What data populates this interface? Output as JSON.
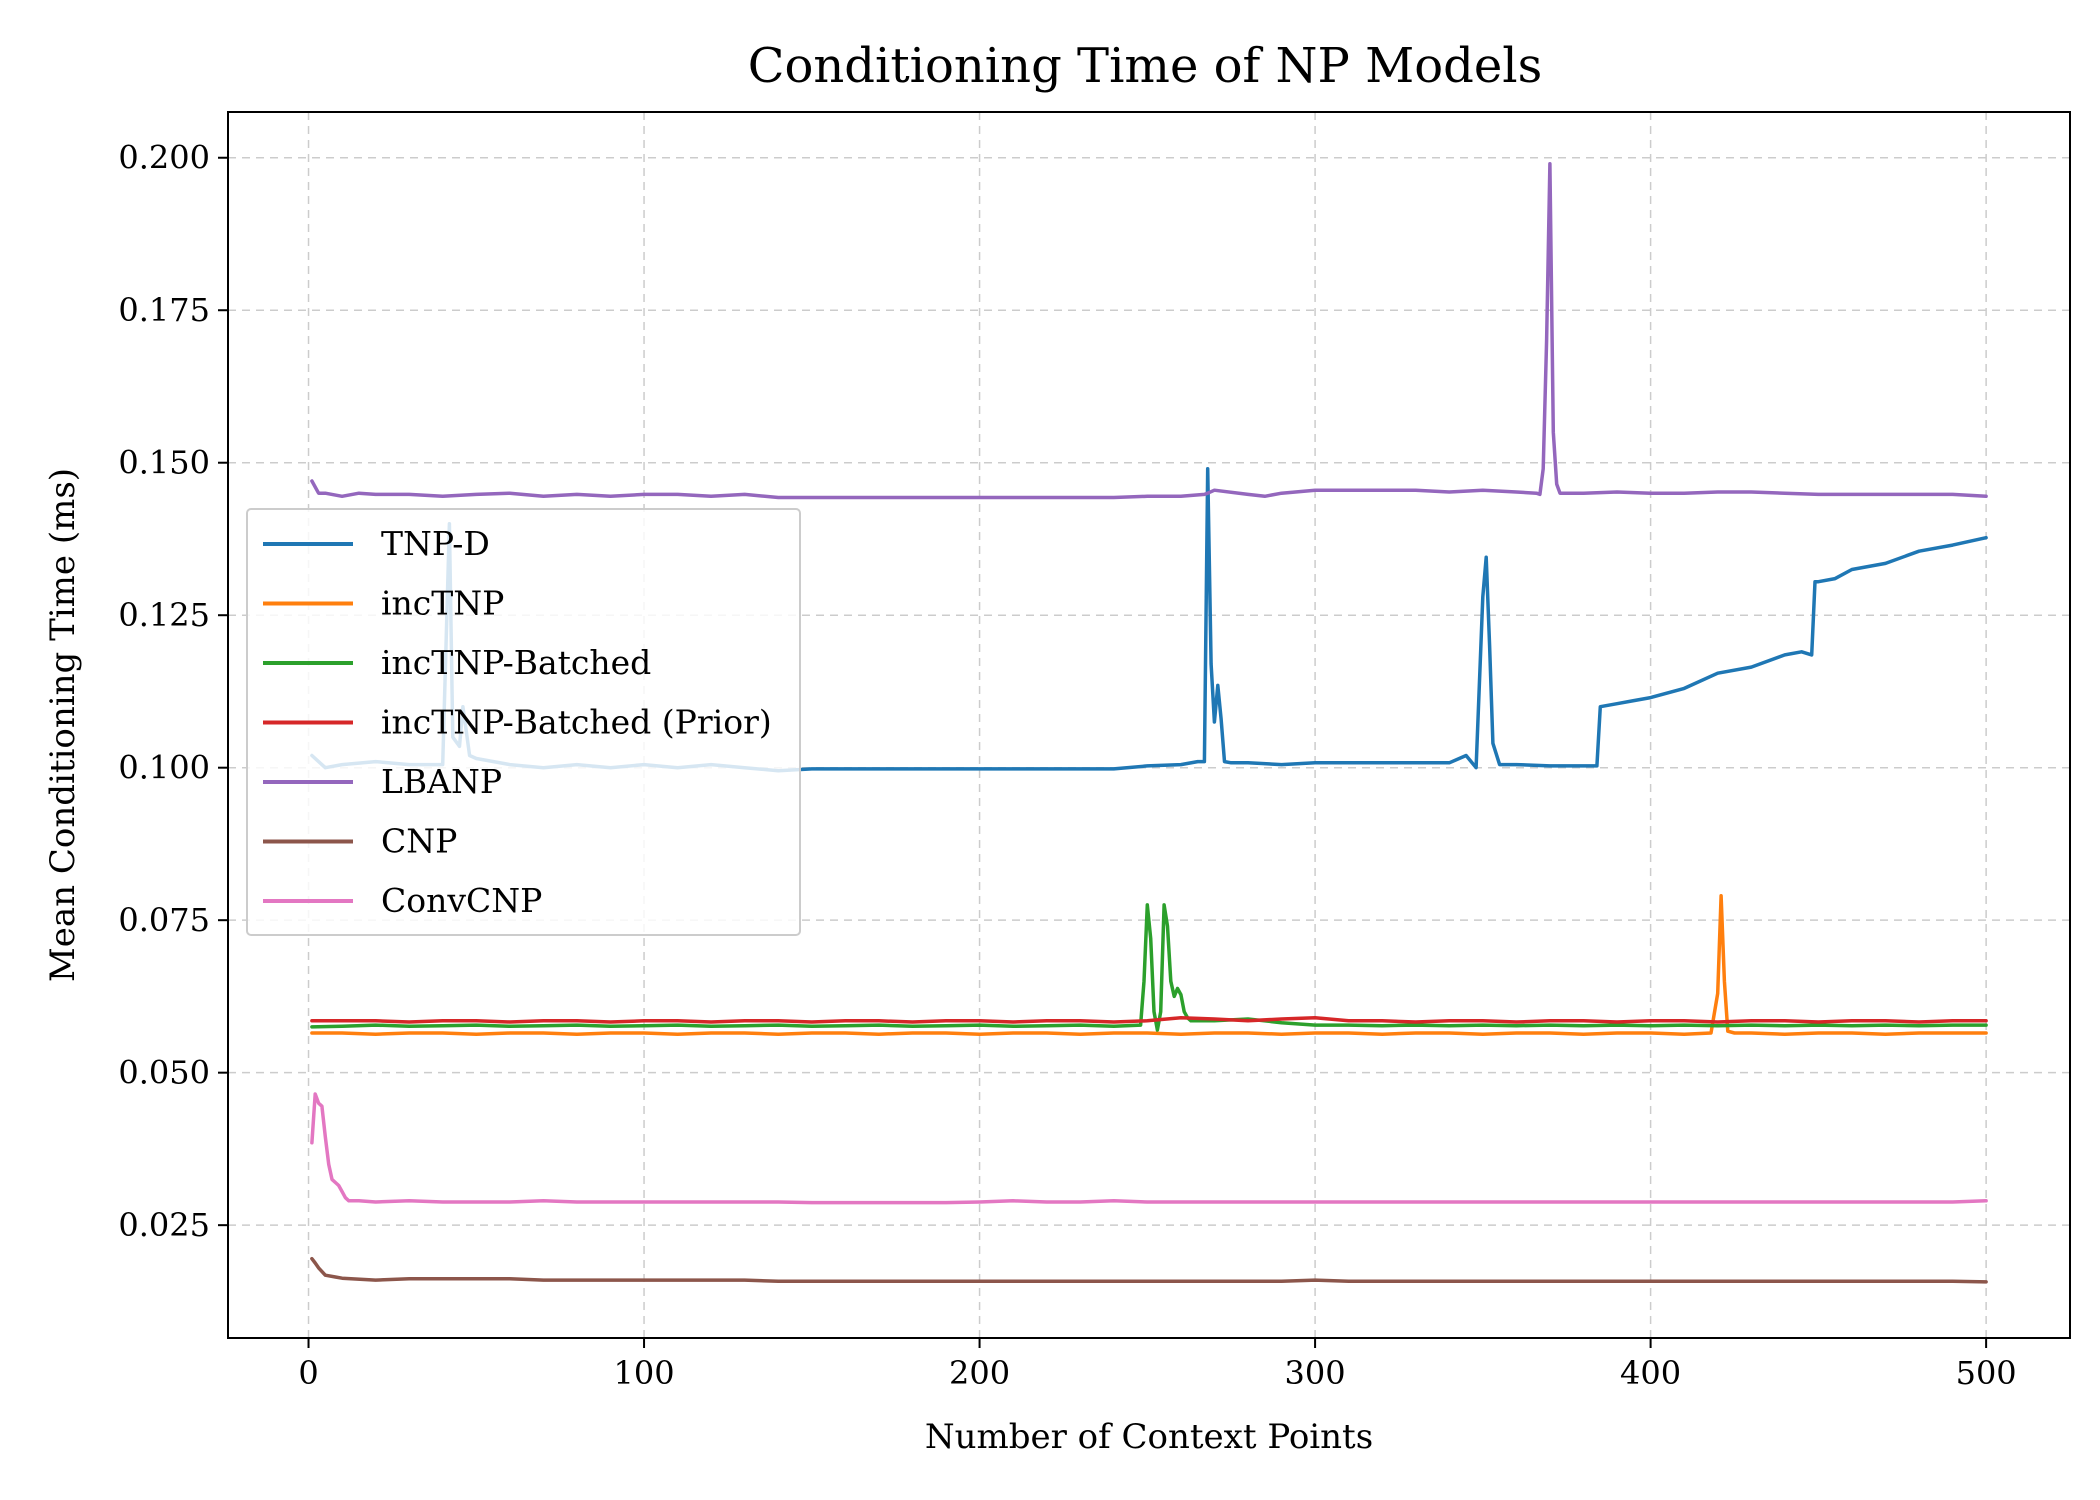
{
  "chart_data": {
    "type": "line",
    "title": "Conditioning Time of NP Models",
    "xlabel": "Number of Context Points",
    "ylabel": "Mean Conditioning Time (ms)",
    "xlim": [
      -24,
      525
    ],
    "ylim": [
      0.0065,
      0.2075
    ],
    "xticks": [
      0,
      100,
      200,
      300,
      400,
      500
    ],
    "xtick_labels": [
      "0",
      "100",
      "200",
      "300",
      "400",
      "500"
    ],
    "yticks": [
      0.025,
      0.05,
      0.075,
      0.1,
      0.125,
      0.15,
      0.175,
      0.2
    ],
    "ytick_labels": [
      "0.025",
      "0.050",
      "0.075",
      "0.100",
      "0.125",
      "0.150",
      "0.175",
      "0.200"
    ],
    "grid": true,
    "legend_position": "center-left",
    "series": [
      {
        "name": "TNP-D",
        "color": "#1f77b4",
        "x": [
          1,
          5,
          10,
          20,
          30,
          40,
          42,
          43,
          45,
          46,
          48,
          50,
          60,
          70,
          80,
          90,
          100,
          110,
          120,
          130,
          140,
          150,
          160,
          170,
          180,
          190,
          200,
          210,
          220,
          230,
          240,
          250,
          260,
          265,
          267,
          268,
          269,
          270,
          271,
          272,
          273,
          275,
          280,
          290,
          300,
          310,
          320,
          330,
          340,
          345,
          348,
          350,
          351,
          352,
          353,
          355,
          360,
          370,
          380,
          384,
          385,
          390,
          395,
          400,
          410,
          420,
          430,
          440,
          445,
          448,
          449,
          450,
          455,
          460,
          470,
          480,
          490,
          500
        ],
        "y": [
          0.102,
          0.1,
          0.1005,
          0.101,
          0.1005,
          0.1005,
          0.14,
          0.105,
          0.1035,
          0.11,
          0.102,
          0.1015,
          0.1005,
          0.1,
          0.1005,
          0.1,
          0.1005,
          0.1,
          0.1005,
          0.1,
          0.0995,
          0.0998,
          0.0998,
          0.0998,
          0.0998,
          0.0998,
          0.0998,
          0.0998,
          0.0998,
          0.0998,
          0.0998,
          0.1003,
          0.1005,
          0.101,
          0.101,
          0.149,
          0.117,
          0.1075,
          0.1135,
          0.108,
          0.101,
          0.1008,
          0.1008,
          0.1005,
          0.1008,
          0.1008,
          0.1008,
          0.1008,
          0.1008,
          0.102,
          0.1,
          0.128,
          0.1345,
          0.12,
          0.104,
          0.1005,
          0.1005,
          0.1003,
          0.1003,
          0.1003,
          0.11,
          0.1105,
          0.111,
          0.1115,
          0.113,
          0.1155,
          0.1165,
          0.1185,
          0.119,
          0.1185,
          0.1305,
          0.1305,
          0.131,
          0.1325,
          0.1335,
          0.1355,
          0.1365,
          0.1377
        ]
      },
      {
        "name": "incTNP",
        "color": "#ff7f0e",
        "x": [
          1,
          10,
          20,
          30,
          40,
          50,
          60,
          70,
          80,
          90,
          100,
          110,
          120,
          130,
          140,
          150,
          160,
          170,
          180,
          190,
          200,
          210,
          220,
          230,
          240,
          250,
          260,
          270,
          280,
          290,
          300,
          310,
          320,
          330,
          340,
          350,
          360,
          370,
          380,
          390,
          400,
          410,
          418,
          420,
          421,
          422,
          423,
          425,
          430,
          440,
          450,
          460,
          470,
          480,
          490,
          500
        ],
        "y": [
          0.0565,
          0.0565,
          0.0563,
          0.0565,
          0.0565,
          0.0563,
          0.0565,
          0.0565,
          0.0563,
          0.0565,
          0.0565,
          0.0563,
          0.0565,
          0.0565,
          0.0563,
          0.0565,
          0.0565,
          0.0563,
          0.0565,
          0.0565,
          0.0563,
          0.0565,
          0.0565,
          0.0563,
          0.0565,
          0.0565,
          0.0563,
          0.0565,
          0.0565,
          0.0563,
          0.0565,
          0.0565,
          0.0563,
          0.0565,
          0.0565,
          0.0563,
          0.0565,
          0.0565,
          0.0563,
          0.0565,
          0.0565,
          0.0563,
          0.0565,
          0.063,
          0.079,
          0.065,
          0.0568,
          0.0565,
          0.0565,
          0.0563,
          0.0565,
          0.0565,
          0.0563,
          0.0565,
          0.0565,
          0.0565
        ]
      },
      {
        "name": "incTNP-Batched",
        "color": "#2ca02c",
        "x": [
          1,
          10,
          20,
          30,
          40,
          50,
          60,
          70,
          80,
          90,
          100,
          110,
          120,
          130,
          140,
          150,
          160,
          170,
          180,
          190,
          200,
          210,
          220,
          230,
          240,
          248,
          249,
          250,
          251,
          252,
          253,
          254,
          255,
          256,
          257,
          258,
          259,
          260,
          261,
          262,
          263,
          265,
          270,
          280,
          290,
          300,
          310,
          320,
          330,
          340,
          350,
          360,
          370,
          380,
          390,
          400,
          410,
          420,
          430,
          440,
          450,
          460,
          470,
          480,
          490,
          500
        ],
        "y": [
          0.0575,
          0.0576,
          0.0578,
          0.0576,
          0.0577,
          0.0578,
          0.0576,
          0.0577,
          0.0578,
          0.0576,
          0.0577,
          0.0578,
          0.0576,
          0.0577,
          0.0578,
          0.0576,
          0.0577,
          0.0578,
          0.0576,
          0.0577,
          0.0578,
          0.0576,
          0.0577,
          0.0578,
          0.0576,
          0.0578,
          0.065,
          0.0775,
          0.072,
          0.06,
          0.057,
          0.06,
          0.0775,
          0.074,
          0.065,
          0.0625,
          0.0638,
          0.0628,
          0.06,
          0.059,
          0.0585,
          0.0585,
          0.0585,
          0.0588,
          0.0582,
          0.0578,
          0.0578,
          0.0577,
          0.0578,
          0.0577,
          0.0578,
          0.0577,
          0.0578,
          0.0577,
          0.0578,
          0.0577,
          0.0578,
          0.0577,
          0.0578,
          0.0577,
          0.0578,
          0.0577,
          0.0578,
          0.0577,
          0.0578,
          0.0578
        ]
      },
      {
        "name": "incTNP-Batched (Prior)",
        "color": "#d62728",
        "x": [
          1,
          10,
          20,
          30,
          40,
          50,
          60,
          70,
          80,
          90,
          100,
          110,
          120,
          130,
          140,
          150,
          160,
          170,
          180,
          190,
          200,
          210,
          220,
          230,
          240,
          250,
          260,
          270,
          280,
          290,
          300,
          310,
          320,
          330,
          340,
          350,
          360,
          370,
          380,
          390,
          400,
          410,
          420,
          430,
          440,
          450,
          460,
          470,
          480,
          490,
          500
        ],
        "y": [
          0.0585,
          0.0585,
          0.0585,
          0.0583,
          0.0585,
          0.0585,
          0.0583,
          0.0585,
          0.0585,
          0.0583,
          0.0585,
          0.0585,
          0.0583,
          0.0585,
          0.0585,
          0.0583,
          0.0585,
          0.0585,
          0.0583,
          0.0585,
          0.0585,
          0.0583,
          0.0585,
          0.0585,
          0.0583,
          0.0585,
          0.059,
          0.0588,
          0.0585,
          0.0588,
          0.059,
          0.0585,
          0.0585,
          0.0583,
          0.0585,
          0.0585,
          0.0583,
          0.0585,
          0.0585,
          0.0583,
          0.0585,
          0.0585,
          0.0583,
          0.0585,
          0.0585,
          0.0583,
          0.0585,
          0.0585,
          0.0583,
          0.0585,
          0.0585
        ]
      },
      {
        "name": "LBANP",
        "color": "#9467bd",
        "x": [
          1,
          3,
          5,
          10,
          15,
          20,
          30,
          40,
          50,
          60,
          70,
          80,
          90,
          100,
          110,
          120,
          130,
          140,
          150,
          160,
          170,
          180,
          190,
          200,
          210,
          220,
          230,
          240,
          250,
          260,
          267,
          268,
          270,
          280,
          285,
          290,
          300,
          310,
          320,
          330,
          340,
          350,
          360,
          366,
          367,
          368,
          369,
          370,
          371,
          372,
          373,
          375,
          380,
          390,
          400,
          410,
          420,
          430,
          440,
          450,
          460,
          470,
          480,
          490,
          500
        ],
        "y": [
          0.147,
          0.145,
          0.145,
          0.1445,
          0.145,
          0.1448,
          0.1448,
          0.1445,
          0.1448,
          0.145,
          0.1445,
          0.1448,
          0.1445,
          0.1448,
          0.1448,
          0.1445,
          0.1448,
          0.1443,
          0.1443,
          0.1443,
          0.1443,
          0.1443,
          0.1443,
          0.1443,
          0.1443,
          0.1443,
          0.1443,
          0.1443,
          0.1445,
          0.1445,
          0.1448,
          0.145,
          0.1455,
          0.1448,
          0.1445,
          0.145,
          0.1455,
          0.1455,
          0.1455,
          0.1455,
          0.1452,
          0.1455,
          0.1452,
          0.145,
          0.1448,
          0.149,
          0.17,
          0.199,
          0.155,
          0.1465,
          0.145,
          0.145,
          0.145,
          0.1452,
          0.145,
          0.145,
          0.1452,
          0.1452,
          0.145,
          0.1448,
          0.1448,
          0.1448,
          0.1448,
          0.1448,
          0.1445
        ]
      },
      {
        "name": "CNP",
        "color": "#8c564b",
        "x": [
          1,
          2,
          3,
          5,
          8,
          10,
          20,
          30,
          40,
          50,
          60,
          70,
          80,
          90,
          100,
          110,
          120,
          130,
          140,
          150,
          160,
          170,
          180,
          190,
          200,
          210,
          220,
          230,
          240,
          250,
          260,
          270,
          280,
          290,
          300,
          310,
          320,
          330,
          340,
          350,
          360,
          370,
          380,
          390,
          400,
          410,
          420,
          430,
          440,
          450,
          460,
          470,
          480,
          490,
          500
        ],
        "y": [
          0.0195,
          0.0188,
          0.018,
          0.0168,
          0.0165,
          0.0163,
          0.016,
          0.0162,
          0.0162,
          0.0162,
          0.0162,
          0.016,
          0.016,
          0.016,
          0.016,
          0.016,
          0.016,
          0.016,
          0.0158,
          0.0158,
          0.0158,
          0.0158,
          0.0158,
          0.0158,
          0.0158,
          0.0158,
          0.0158,
          0.0158,
          0.0158,
          0.0158,
          0.0158,
          0.0158,
          0.0158,
          0.0158,
          0.016,
          0.0158,
          0.0158,
          0.0158,
          0.0158,
          0.0158,
          0.0158,
          0.0158,
          0.0158,
          0.0158,
          0.0158,
          0.0158,
          0.0158,
          0.0158,
          0.0158,
          0.0158,
          0.0158,
          0.0158,
          0.0158,
          0.0158,
          0.0157
        ]
      },
      {
        "name": "ConvCNP",
        "color": "#e377c2",
        "x": [
          1,
          2,
          3,
          4,
          5,
          6,
          7,
          8,
          9,
          10,
          11,
          12,
          15,
          20,
          30,
          40,
          50,
          60,
          70,
          80,
          90,
          100,
          110,
          120,
          130,
          140,
          150,
          160,
          170,
          180,
          190,
          200,
          210,
          220,
          230,
          240,
          250,
          260,
          270,
          280,
          290,
          300,
          310,
          320,
          330,
          340,
          350,
          360,
          370,
          380,
          390,
          400,
          410,
          420,
          430,
          440,
          450,
          460,
          470,
          480,
          490,
          500
        ],
        "y": [
          0.0385,
          0.0465,
          0.045,
          0.0445,
          0.0395,
          0.035,
          0.0325,
          0.032,
          0.0315,
          0.0305,
          0.0295,
          0.029,
          0.029,
          0.0288,
          0.029,
          0.0288,
          0.0288,
          0.0288,
          0.029,
          0.0288,
          0.0288,
          0.0288,
          0.0288,
          0.0288,
          0.0288,
          0.0288,
          0.0287,
          0.0287,
          0.0287,
          0.0287,
          0.0287,
          0.0288,
          0.029,
          0.0288,
          0.0288,
          0.029,
          0.0288,
          0.0288,
          0.0288,
          0.0288,
          0.0288,
          0.0288,
          0.0288,
          0.0288,
          0.0288,
          0.0288,
          0.0288,
          0.0288,
          0.0288,
          0.0288,
          0.0288,
          0.0288,
          0.0288,
          0.0288,
          0.0288,
          0.0288,
          0.0288,
          0.0288,
          0.0288,
          0.0288,
          0.0288,
          0.029
        ]
      }
    ]
  }
}
